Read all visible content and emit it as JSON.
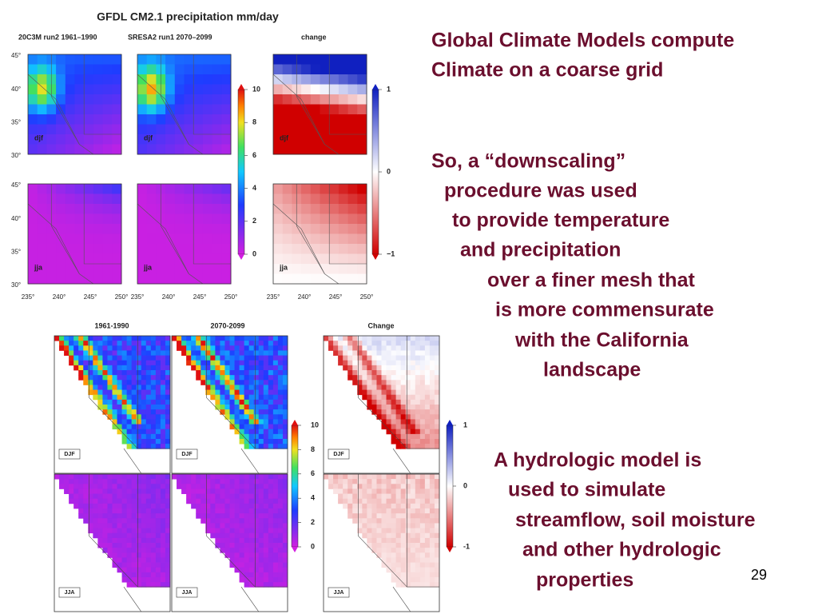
{
  "top_figure": {
    "title": "GFDL CM2.1 precipitation  mm/day",
    "panel_titles": [
      "20C3M run2 1961–1990",
      "SRESA2 run1 2070–2099",
      "change"
    ],
    "lat_labels": [
      "45°",
      "40°",
      "35°",
      "30°"
    ],
    "lon_labels": [
      "235°",
      "240°",
      "245°",
      "250°"
    ],
    "seasons": [
      "djf",
      "jja"
    ],
    "precip_scale": [
      "10",
      "8",
      "6",
      "4",
      "2",
      "0"
    ],
    "change_scale": [
      "1",
      "0",
      "−1"
    ]
  },
  "bottom_figure": {
    "panel_titles": [
      "1961-1990",
      "2070-2099",
      "Change"
    ],
    "seasons": [
      "DJF",
      "JJA"
    ],
    "precip_scale": [
      "10",
      "8",
      "6",
      "4",
      "2",
      "0"
    ],
    "change_scale": [
      "1",
      "0",
      "-1"
    ]
  },
  "heading": [
    "Global Climate Models compute",
    "Climate on a coarse grid"
  ],
  "paragraphs": [
    [
      "So, a “downscaling”",
      "procedure was used",
      "to provide temperature",
      "and precipitation",
      "over a finer mesh that",
      "is more commensurate",
      "with the California",
      "landscape"
    ],
    [
      "A hydrologic model is",
      "used to simulate",
      "streamflow, soil moisture",
      "and other hydrologic",
      "properties"
    ]
  ],
  "page_number": "29"
}
